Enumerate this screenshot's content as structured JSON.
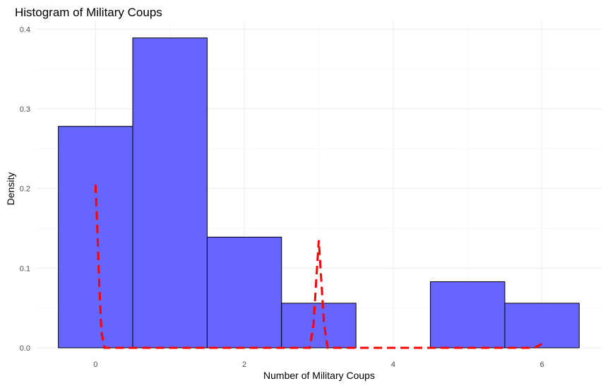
{
  "chart_data": {
    "type": "bar",
    "title": "Histogram of Military Coups",
    "xlabel": "Number of Military Coups",
    "ylabel": "Density",
    "xlim": [
      -0.8,
      6.8
    ],
    "ylim": [
      0,
      0.41
    ],
    "x_ticks": [
      0,
      2,
      4,
      6
    ],
    "y_ticks": [
      0.0,
      0.1,
      0.2,
      0.3,
      0.4
    ],
    "x_tick_labels": [
      "0",
      "2",
      "4",
      "6"
    ],
    "y_tick_labels": [
      "0.0",
      "0.1",
      "0.2",
      "0.3",
      "0.4"
    ],
    "grid": true,
    "bins": [
      {
        "x": 0,
        "density": 0.278
      },
      {
        "x": 1,
        "density": 0.389
      },
      {
        "x": 2,
        "density": 0.139
      },
      {
        "x": 3,
        "density": 0.056
      },
      {
        "x": 4,
        "density": 0.0
      },
      {
        "x": 5,
        "density": 0.083
      },
      {
        "x": 6,
        "density": 0.056
      }
    ],
    "bin_width": 1,
    "bar_color": "#6666ff",
    "bar_border": "#000000",
    "density_line": {
      "color": "#ff0000",
      "style": "dashed",
      "x": [
        0.0,
        0.02,
        0.05,
        0.08,
        0.12,
        2.88,
        2.93,
        2.97,
        3.0,
        3.03,
        3.07,
        3.12,
        5.9,
        6.0
      ],
      "y": [
        0.205,
        0.16,
        0.08,
        0.02,
        0.0,
        0.0,
        0.03,
        0.09,
        0.135,
        0.09,
        0.03,
        0.0,
        0.0,
        0.005
      ]
    }
  }
}
